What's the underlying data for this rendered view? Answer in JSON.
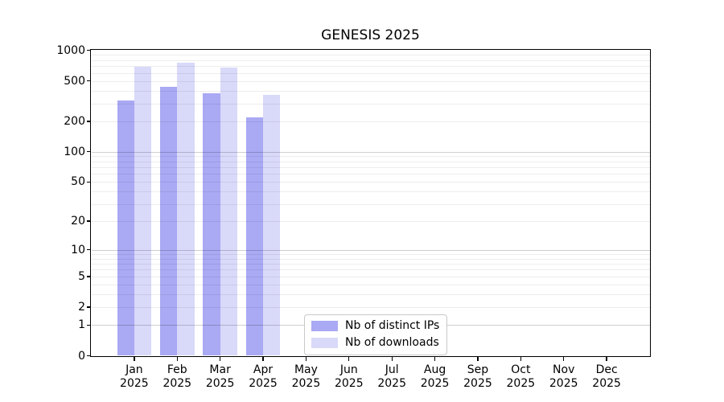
{
  "chart_data": {
    "type": "bar",
    "title": "GENESIS 2025",
    "x": {
      "months": [
        "Jan",
        "Feb",
        "Mar",
        "Apr",
        "May",
        "Jun",
        "Jul",
        "Aug",
        "Sep",
        "Oct",
        "Nov",
        "Dec"
      ],
      "year": "2025"
    },
    "series": [
      {
        "name": "Nb of distinct IPs",
        "color": "#a9a9f4",
        "values": [
          320,
          438,
          379,
          220,
          0,
          0,
          0,
          0,
          0,
          0,
          0,
          0
        ]
      },
      {
        "name": "Nb of downloads",
        "color": "#d9d9f9",
        "values": [
          687,
          756,
          674,
          362,
          0,
          0,
          0,
          0,
          0,
          0,
          0,
          0
        ]
      }
    ],
    "y_axis": {
      "scale": "log1p",
      "limits": [
        0,
        1000
      ],
      "ticks": [
        1000,
        500,
        200,
        100,
        50,
        20,
        10,
        5,
        2,
        1,
        0
      ]
    },
    "legend": {
      "position": "lower center"
    },
    "grid": {
      "orientation": "horizontal",
      "major_values": [
        1,
        10,
        100
      ]
    }
  },
  "style": {
    "background": "#ffffff",
    "spine_color": "#000000",
    "major_grid_color": "rgba(0,0,0,0.19)",
    "minor_grid_color": "rgba(0,0,0,0.07)",
    "text_color": "#000000"
  }
}
